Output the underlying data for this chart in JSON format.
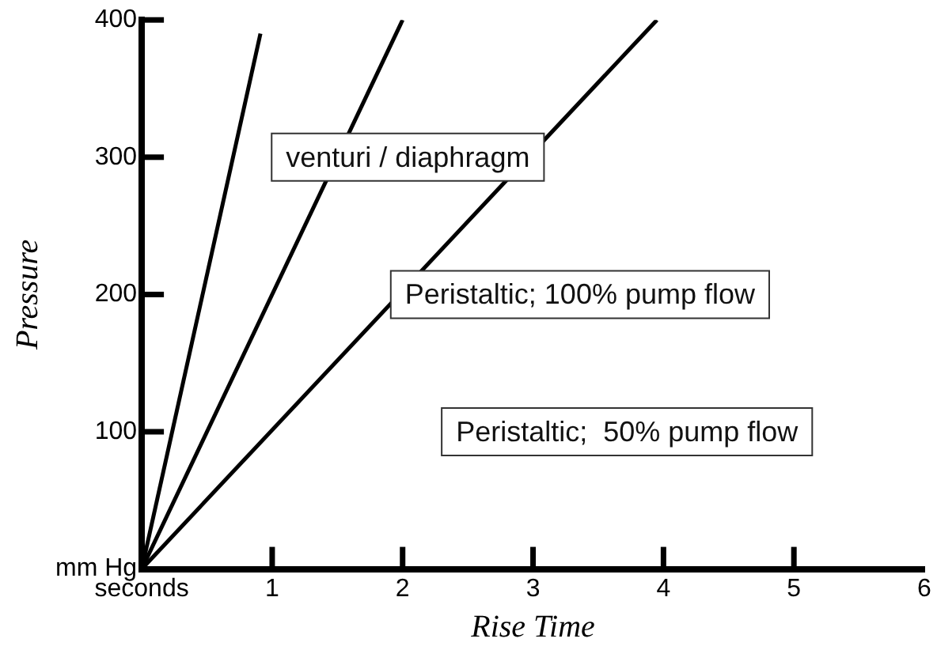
{
  "chart_data": {
    "type": "line",
    "xlabel": "Rise Time",
    "ylabel": "Pressure",
    "xlim": [
      0,
      6
    ],
    "ylim": [
      0,
      400
    ],
    "xticks": [
      {
        "value": 0,
        "label": "seconds"
      },
      1,
      2,
      3,
      4,
      5,
      6
    ],
    "yticks": [
      {
        "value": 0,
        "label": "mm Hg"
      },
      100,
      200,
      300,
      400
    ],
    "grid": false,
    "legend": false,
    "marker": "none",
    "line_style": "solid",
    "series": [
      {
        "color": "#000000",
        "x": [
          0,
          0.91
        ],
        "values": [
          0,
          390
        ]
      },
      {
        "color": "#000000",
        "x": [
          0,
          2.0
        ],
        "values": [
          0,
          400
        ]
      },
      {
        "color": "#000000",
        "x": [
          0,
          3.95
        ],
        "values": [
          0,
          400
        ]
      }
    ],
    "annotations": [
      "venturi / diaphragm",
      "Peristaltic; 100% pump flow",
      "Peristaltic;  50% pump flow"
    ]
  }
}
